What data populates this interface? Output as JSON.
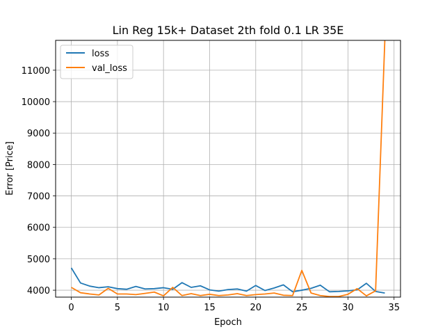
{
  "chart_data": {
    "type": "line",
    "title": "Lin Reg 15k+ Dataset 2th fold 0.1 LR 35E",
    "xlabel": "Epoch",
    "ylabel": "Error [Price]",
    "xlim": [
      -1.7,
      35.7
    ],
    "ylim": [
      3780,
      11950
    ],
    "x_ticks": [
      0,
      5,
      10,
      15,
      20,
      25,
      30,
      35
    ],
    "y_ticks": [
      4000,
      5000,
      6000,
      7000,
      8000,
      9000,
      10000,
      11000
    ],
    "grid": true,
    "legend": "top-left",
    "x": [
      0,
      1,
      2,
      3,
      4,
      5,
      6,
      7,
      8,
      9,
      10,
      11,
      12,
      13,
      14,
      15,
      16,
      17,
      18,
      19,
      20,
      21,
      22,
      23,
      24,
      25,
      26,
      27,
      28,
      29,
      30,
      31,
      32,
      33,
      34
    ],
    "series": [
      {
        "name": "loss",
        "color": "#1f77b4",
        "values": [
          4710,
          4230,
          4130,
          4080,
          4110,
          4050,
          4030,
          4120,
          4040,
          4050,
          4080,
          4030,
          4240,
          4090,
          4140,
          4010,
          3970,
          4020,
          4040,
          3970,
          4150,
          3990,
          4070,
          4170,
          3950,
          4000,
          4060,
          4160,
          3950,
          3960,
          3980,
          4010,
          4220,
          3960,
          3910
        ]
      },
      {
        "name": "val_loss",
        "color": "#ff7f0e",
        "values": [
          4090,
          3920,
          3880,
          3850,
          4060,
          3880,
          3880,
          3860,
          3900,
          3940,
          3820,
          4090,
          3830,
          3890,
          3830,
          3870,
          3830,
          3850,
          3890,
          3830,
          3860,
          3880,
          3910,
          3840,
          3830,
          4630,
          3910,
          3830,
          3800,
          3800,
          3870,
          4050,
          3820,
          3980,
          11950
        ]
      }
    ]
  }
}
